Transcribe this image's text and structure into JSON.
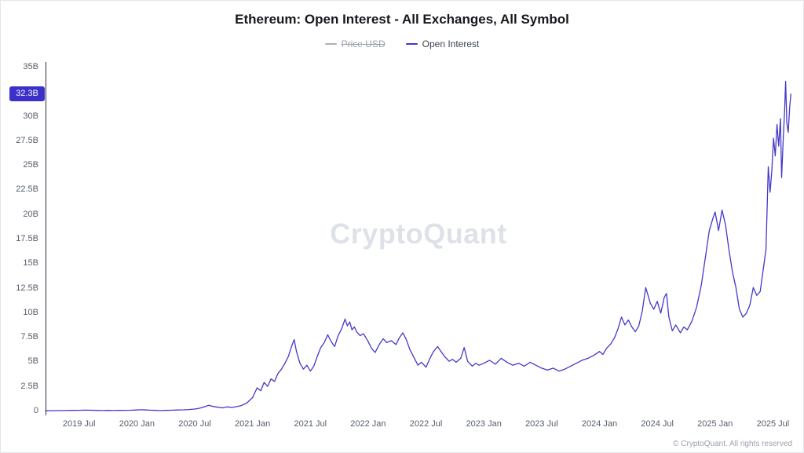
{
  "header": {
    "title": "Ethereum: Open Interest - All Exchanges, All Symbol"
  },
  "legend": {
    "items": [
      {
        "label": "Price USD",
        "color": "#a9aeb8",
        "disabled": true
      },
      {
        "label": "Open Interest",
        "color": "#4338ca",
        "disabled": false
      }
    ]
  },
  "watermark": {
    "text": "CryptoQuant"
  },
  "footer": {
    "copyright": "© CryptoQuant. All rights reserved"
  },
  "chart_data": {
    "type": "line",
    "title": "Ethereum: Open Interest - All Exchanges, All Symbol",
    "unit": "B (billions USD)",
    "grid": false,
    "legend_position": "top",
    "ylim": [
      0,
      35
    ],
    "xlim": [
      2019.21,
      2025.66
    ],
    "current_value": {
      "label": "32.3B",
      "value": 32.3,
      "color": "#3b30c9"
    },
    "y_ticks": [
      {
        "label": "35B",
        "value": 35
      },
      {
        "label": "30B",
        "value": 30
      },
      {
        "label": "27.5B",
        "value": 27.5
      },
      {
        "label": "25B",
        "value": 25
      },
      {
        "label": "22.5B",
        "value": 22.5
      },
      {
        "label": "20B",
        "value": 20
      },
      {
        "label": "17.5B",
        "value": 17.5
      },
      {
        "label": "15B",
        "value": 15
      },
      {
        "label": "12.5B",
        "value": 12.5
      },
      {
        "label": "10B",
        "value": 10
      },
      {
        "label": "7.5B",
        "value": 7.5
      },
      {
        "label": "5B",
        "value": 5
      },
      {
        "label": "2.5B",
        "value": 2.5
      },
      {
        "label": "0",
        "value": 0
      }
    ],
    "x_ticks": [
      {
        "label": "2019 Jul",
        "value": 2019.5
      },
      {
        "label": "2020 Jan",
        "value": 2020.0
      },
      {
        "label": "2020 Jul",
        "value": 2020.5
      },
      {
        "label": "2021 Jan",
        "value": 2021.0
      },
      {
        "label": "2021 Jul",
        "value": 2021.5
      },
      {
        "label": "2022 Jan",
        "value": 2022.0
      },
      {
        "label": "2022 Jul",
        "value": 2022.5
      },
      {
        "label": "2023 Jan",
        "value": 2023.0
      },
      {
        "label": "2023 Jul",
        "value": 2023.5
      },
      {
        "label": "2024 Jan",
        "value": 2024.0
      },
      {
        "label": "2024 Jul",
        "value": 2024.5
      },
      {
        "label": "2025 Jan",
        "value": 2025.0
      },
      {
        "label": "2025 Jul",
        "value": 2025.5
      }
    ],
    "series": [
      {
        "name": "Open Interest",
        "color": "#4338ca",
        "points": [
          [
            2019.21,
            0.06
          ],
          [
            2019.26,
            0.07
          ],
          [
            2019.32,
            0.08
          ],
          [
            2019.38,
            0.09
          ],
          [
            2019.44,
            0.1
          ],
          [
            2019.5,
            0.11
          ],
          [
            2019.55,
            0.13
          ],
          [
            2019.6,
            0.12
          ],
          [
            2019.65,
            0.1
          ],
          [
            2019.7,
            0.09
          ],
          [
            2019.75,
            0.1
          ],
          [
            2019.8,
            0.09
          ],
          [
            2019.85,
            0.1
          ],
          [
            2019.9,
            0.11
          ],
          [
            2019.95,
            0.12
          ],
          [
            2020.0,
            0.14
          ],
          [
            2020.04,
            0.17
          ],
          [
            2020.08,
            0.14
          ],
          [
            2020.12,
            0.12
          ],
          [
            2020.16,
            0.1
          ],
          [
            2020.2,
            0.08
          ],
          [
            2020.25,
            0.1
          ],
          [
            2020.3,
            0.12
          ],
          [
            2020.35,
            0.14
          ],
          [
            2020.4,
            0.16
          ],
          [
            2020.45,
            0.19
          ],
          [
            2020.5,
            0.24
          ],
          [
            2020.54,
            0.32
          ],
          [
            2020.58,
            0.45
          ],
          [
            2020.62,
            0.62
          ],
          [
            2020.66,
            0.5
          ],
          [
            2020.7,
            0.42
          ],
          [
            2020.74,
            0.36
          ],
          [
            2020.78,
            0.46
          ],
          [
            2020.82,
            0.4
          ],
          [
            2020.86,
            0.48
          ],
          [
            2020.9,
            0.58
          ],
          [
            2020.95,
            0.85
          ],
          [
            2021.0,
            1.4
          ],
          [
            2021.04,
            2.4
          ],
          [
            2021.07,
            2.1
          ],
          [
            2021.1,
            2.95
          ],
          [
            2021.13,
            2.55
          ],
          [
            2021.16,
            3.3
          ],
          [
            2021.19,
            3.05
          ],
          [
            2021.22,
            3.85
          ],
          [
            2021.25,
            4.3
          ],
          [
            2021.28,
            4.9
          ],
          [
            2021.31,
            5.6
          ],
          [
            2021.34,
            6.7
          ],
          [
            2021.36,
            7.3
          ],
          [
            2021.38,
            6.1
          ],
          [
            2021.41,
            4.9
          ],
          [
            2021.44,
            4.3
          ],
          [
            2021.47,
            4.7
          ],
          [
            2021.5,
            4.1
          ],
          [
            2021.53,
            4.6
          ],
          [
            2021.56,
            5.6
          ],
          [
            2021.59,
            6.5
          ],
          [
            2021.62,
            7.0
          ],
          [
            2021.65,
            7.8
          ],
          [
            2021.68,
            7.1
          ],
          [
            2021.71,
            6.6
          ],
          [
            2021.74,
            7.7
          ],
          [
            2021.77,
            8.4
          ],
          [
            2021.8,
            9.4
          ],
          [
            2021.82,
            8.7
          ],
          [
            2021.84,
            9.1
          ],
          [
            2021.86,
            8.3
          ],
          [
            2021.88,
            8.6
          ],
          [
            2021.9,
            8.1
          ],
          [
            2021.93,
            7.7
          ],
          [
            2021.96,
            7.9
          ],
          [
            2022.0,
            7.1
          ],
          [
            2022.03,
            6.4
          ],
          [
            2022.06,
            6.0
          ],
          [
            2022.1,
            6.9
          ],
          [
            2022.13,
            7.4
          ],
          [
            2022.16,
            7.0
          ],
          [
            2022.2,
            7.2
          ],
          [
            2022.24,
            6.8
          ],
          [
            2022.27,
            7.5
          ],
          [
            2022.3,
            8.0
          ],
          [
            2022.33,
            7.3
          ],
          [
            2022.36,
            6.3
          ],
          [
            2022.4,
            5.4
          ],
          [
            2022.43,
            4.7
          ],
          [
            2022.46,
            5.0
          ],
          [
            2022.5,
            4.5
          ],
          [
            2022.53,
            5.3
          ],
          [
            2022.56,
            6.0
          ],
          [
            2022.6,
            6.6
          ],
          [
            2022.63,
            6.1
          ],
          [
            2022.66,
            5.6
          ],
          [
            2022.7,
            5.1
          ],
          [
            2022.73,
            5.3
          ],
          [
            2022.76,
            5.0
          ],
          [
            2022.8,
            5.4
          ],
          [
            2022.83,
            6.5
          ],
          [
            2022.86,
            5.1
          ],
          [
            2022.9,
            4.6
          ],
          [
            2022.93,
            4.9
          ],
          [
            2022.96,
            4.7
          ],
          [
            2023.0,
            4.9
          ],
          [
            2023.05,
            5.2
          ],
          [
            2023.1,
            4.8
          ],
          [
            2023.15,
            5.4
          ],
          [
            2023.2,
            5.0
          ],
          [
            2023.25,
            4.7
          ],
          [
            2023.3,
            4.9
          ],
          [
            2023.35,
            4.6
          ],
          [
            2023.4,
            5.0
          ],
          [
            2023.45,
            4.7
          ],
          [
            2023.5,
            4.4
          ],
          [
            2023.55,
            4.2
          ],
          [
            2023.6,
            4.4
          ],
          [
            2023.65,
            4.1
          ],
          [
            2023.7,
            4.3
          ],
          [
            2023.75,
            4.6
          ],
          [
            2023.8,
            4.9
          ],
          [
            2023.85,
            5.2
          ],
          [
            2023.9,
            5.4
          ],
          [
            2023.95,
            5.7
          ],
          [
            2024.0,
            6.1
          ],
          [
            2024.03,
            5.8
          ],
          [
            2024.06,
            6.4
          ],
          [
            2024.1,
            6.9
          ],
          [
            2024.13,
            7.5
          ],
          [
            2024.16,
            8.4
          ],
          [
            2024.19,
            9.6
          ],
          [
            2024.22,
            8.8
          ],
          [
            2024.25,
            9.3
          ],
          [
            2024.28,
            8.6
          ],
          [
            2024.31,
            8.1
          ],
          [
            2024.34,
            8.7
          ],
          [
            2024.37,
            10.2
          ],
          [
            2024.4,
            12.6
          ],
          [
            2024.42,
            11.8
          ],
          [
            2024.44,
            11.0
          ],
          [
            2024.47,
            10.4
          ],
          [
            2024.5,
            11.2
          ],
          [
            2024.53,
            10.0
          ],
          [
            2024.56,
            11.6
          ],
          [
            2024.58,
            12.0
          ],
          [
            2024.6,
            9.6
          ],
          [
            2024.63,
            8.2
          ],
          [
            2024.66,
            8.8
          ],
          [
            2024.7,
            8.0
          ],
          [
            2024.73,
            8.6
          ],
          [
            2024.76,
            8.3
          ],
          [
            2024.8,
            9.2
          ],
          [
            2024.84,
            10.6
          ],
          [
            2024.88,
            12.8
          ],
          [
            2024.92,
            16.0
          ],
          [
            2024.95,
            18.4
          ],
          [
            2024.98,
            19.6
          ],
          [
            2025.0,
            20.3
          ],
          [
            2025.03,
            18.4
          ],
          [
            2025.06,
            20.5
          ],
          [
            2025.09,
            19.0
          ],
          [
            2025.12,
            16.4
          ],
          [
            2025.15,
            14.2
          ],
          [
            2025.18,
            12.6
          ],
          [
            2025.21,
            10.4
          ],
          [
            2025.24,
            9.6
          ],
          [
            2025.27,
            10.0
          ],
          [
            2025.3,
            10.8
          ],
          [
            2025.33,
            12.6
          ],
          [
            2025.36,
            11.8
          ],
          [
            2025.39,
            12.2
          ],
          [
            2025.42,
            14.8
          ],
          [
            2025.44,
            16.5
          ],
          [
            2025.46,
            24.9
          ],
          [
            2025.475,
            22.3
          ],
          [
            2025.49,
            24.5
          ],
          [
            2025.505,
            27.8
          ],
          [
            2025.52,
            26.0
          ],
          [
            2025.535,
            29.2
          ],
          [
            2025.55,
            27.0
          ],
          [
            2025.565,
            29.8
          ],
          [
            2025.575,
            23.8
          ],
          [
            2025.59,
            28.0
          ],
          [
            2025.6,
            30.4
          ],
          [
            2025.61,
            33.6
          ],
          [
            2025.62,
            29.4
          ],
          [
            2025.632,
            28.4
          ],
          [
            2025.645,
            31.0
          ],
          [
            2025.655,
            32.3
          ]
        ]
      }
    ]
  }
}
